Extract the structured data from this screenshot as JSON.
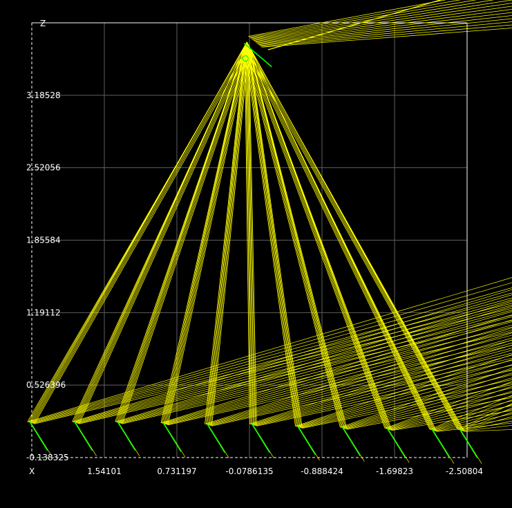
{
  "chart_data": {
    "type": "line",
    "xlabel": "X",
    "ylabel": "Z",
    "x_ticks": [
      "1.54101",
      "0.731197",
      "-0.0786135",
      "-0.888424",
      "-1.69823",
      "-2.50804"
    ],
    "y_ticks": [
      "3.18528",
      "2.52056",
      "1.85584",
      "1.19112",
      "0.526396",
      "-0.138325"
    ],
    "xlim": [
      2.35082,
      -2.50804
    ],
    "ylim": [
      -0.138325,
      3.85
    ],
    "grid": true,
    "colors": {
      "background": "#000000",
      "grid": "#5f5f5f",
      "frame": "#ffffff",
      "rays": "#ffff00",
      "surfaces": "#00ff00"
    },
    "focus": {
      "x": -0.05,
      "z": 3.7
    },
    "mirror_bases": [
      {
        "x": 2.36,
        "z": 0.18
      },
      {
        "x": 1.86,
        "z": 0.18
      },
      {
        "x": 1.38,
        "z": 0.18
      },
      {
        "x": 0.87,
        "z": 0.17
      },
      {
        "x": 0.38,
        "z": 0.16
      },
      {
        "x": -0.12,
        "z": 0.16
      },
      {
        "x": -0.63,
        "z": 0.14
      },
      {
        "x": -1.13,
        "z": 0.13
      },
      {
        "x": -1.63,
        "z": 0.12
      },
      {
        "x": -2.13,
        "z": 0.11
      },
      {
        "x": -2.44,
        "z": 0.11
      }
    ]
  }
}
